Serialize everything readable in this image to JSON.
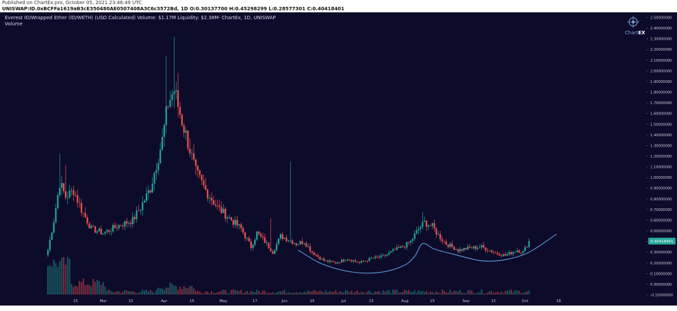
{
  "header": {
    "published": "Published on ChartEx.pro, October 05, 2021 23:46:49 UTC",
    "ticker": "UNISWAP:ID.0xBCFFa1619aB3cE350480AE0507408A3C6c3572Bd, 1D O:0.30137700 H:0.45298299 L:0.28577301 C:0.40418401"
  },
  "legend": {
    "line1": "Everest ID/Wrapped Ether (ID/WETH) (USD Calculated) Volume: $1.17M Liquidity: $2.38M· ChartEx, 1D, UNISWAP",
    "line2": "Volume"
  },
  "logo": {
    "text_chart": "Chart",
    "text_ex": "EX",
    "icon": "crosshair-globe-icon"
  },
  "colors": {
    "background": "#0d0b2a",
    "up": "#26a69a",
    "down": "#ef5350",
    "curve": "#5b9fd6",
    "price_badge": "#26a69a",
    "axis_text": "#c8c8d8"
  },
  "chart_data": {
    "type": "candlestick",
    "title": "Everest ID/Wrapped Ether (ID/WETH) (USD Calculated)",
    "last_price": 0.40418401,
    "last_price_label": "0.40418401",
    "ylim": [
      -0.1,
      2.5
    ],
    "y_ticks": [
      "2.50000000",
      "2.40000000",
      "2.30000000",
      "2.20000000",
      "2.10000000",
      "2.00000000",
      "1.90000000",
      "1.80000000",
      "1.70000000",
      "1.60000000",
      "1.50000000",
      "1.40000000",
      "1.30000000",
      "1.20000000",
      "1.10000000",
      "1.00000000",
      "0.90000000",
      "0.80000000",
      "0.70000000",
      "0.60000000",
      "0.50000000",
      "0.40000000",
      "0.30000000",
      "0.20000000",
      "0.10000000",
      "0.00000000",
      "-0.10000000"
    ],
    "x_ticks": [
      "15",
      "Mar",
      "15",
      "Apr",
      "15",
      "May",
      "17",
      "Jun",
      "15",
      "Jul",
      "15",
      "Aug",
      "15",
      "Sep",
      "15",
      "Oct",
      "18"
    ],
    "x_tick_days": [
      14,
      28,
      42,
      59,
      73,
      89,
      105,
      120,
      134,
      150,
      164,
      181,
      195,
      212,
      226,
      242,
      259
    ],
    "volume_ylim": [
      0,
      0.3
    ],
    "price_keypoints": [
      {
        "day": 0,
        "close": 0.32
      },
      {
        "day": 3,
        "close": 0.6
      },
      {
        "day": 6,
        "close": 0.95
      },
      {
        "day": 9,
        "close": 0.82
      },
      {
        "day": 13,
        "close": 0.88
      },
      {
        "day": 17,
        "close": 0.7
      },
      {
        "day": 22,
        "close": 0.52
      },
      {
        "day": 28,
        "close": 0.48
      },
      {
        "day": 36,
        "close": 0.55
      },
      {
        "day": 43,
        "close": 0.6
      },
      {
        "day": 47,
        "close": 0.72
      },
      {
        "day": 52,
        "close": 0.9
      },
      {
        "day": 58,
        "close": 1.35
      },
      {
        "day": 61,
        "close": 1.7
      },
      {
        "day": 64,
        "close": 1.82
      },
      {
        "day": 67,
        "close": 1.6
      },
      {
        "day": 70,
        "close": 1.4
      },
      {
        "day": 75,
        "close": 1.05
      },
      {
        "day": 80,
        "close": 0.88
      },
      {
        "day": 86,
        "close": 0.72
      },
      {
        "day": 92,
        "close": 0.62
      },
      {
        "day": 98,
        "close": 0.52
      },
      {
        "day": 103,
        "close": 0.35
      },
      {
        "day": 106,
        "close": 0.48
      },
      {
        "day": 110,
        "close": 0.4
      },
      {
        "day": 114,
        "close": 0.3
      },
      {
        "day": 118,
        "close": 0.45
      },
      {
        "day": 122,
        "close": 0.42
      },
      {
        "day": 126,
        "close": 0.38
      },
      {
        "day": 130,
        "close": 0.4
      },
      {
        "day": 134,
        "close": 0.3
      },
      {
        "day": 140,
        "close": 0.22
      },
      {
        "day": 146,
        "close": 0.2
      },
      {
        "day": 152,
        "close": 0.24
      },
      {
        "day": 158,
        "close": 0.2
      },
      {
        "day": 164,
        "close": 0.24
      },
      {
        "day": 170,
        "close": 0.26
      },
      {
        "day": 176,
        "close": 0.32
      },
      {
        "day": 180,
        "close": 0.35
      },
      {
        "day": 184,
        "close": 0.4
      },
      {
        "day": 188,
        "close": 0.52
      },
      {
        "day": 191,
        "close": 0.58
      },
      {
        "day": 195,
        "close": 0.54
      },
      {
        "day": 198,
        "close": 0.46
      },
      {
        "day": 202,
        "close": 0.38
      },
      {
        "day": 208,
        "close": 0.32
      },
      {
        "day": 214,
        "close": 0.34
      },
      {
        "day": 220,
        "close": 0.35
      },
      {
        "day": 226,
        "close": 0.3
      },
      {
        "day": 232,
        "close": 0.27
      },
      {
        "day": 238,
        "close": 0.32
      },
      {
        "day": 241,
        "close": 0.3
      },
      {
        "day": 244,
        "close": 0.404
      }
    ],
    "spikes": [
      {
        "day": 64,
        "high": 2.32
      },
      {
        "day": 60,
        "high": 2.14
      },
      {
        "day": 66,
        "high": 1.98
      },
      {
        "day": 6,
        "high": 1.22
      },
      {
        "day": 123,
        "high": 1.15
      },
      {
        "day": 9,
        "high": 1.12
      },
      {
        "day": 190,
        "high": 0.68
      },
      {
        "day": 113,
        "high": 0.62
      }
    ],
    "curve_points": [
      {
        "day": 127,
        "value": 0.32
      },
      {
        "day": 139,
        "value": 0.19
      },
      {
        "day": 154,
        "value": 0.115
      },
      {
        "day": 168,
        "value": 0.11
      },
      {
        "day": 180,
        "value": 0.17
      },
      {
        "day": 186,
        "value": 0.26
      },
      {
        "day": 190,
        "value": 0.38
      },
      {
        "day": 196,
        "value": 0.33
      },
      {
        "day": 206,
        "value": 0.28
      },
      {
        "day": 220,
        "value": 0.22
      },
      {
        "day": 232,
        "value": 0.23
      },
      {
        "day": 244,
        "value": 0.3
      },
      {
        "day": 258,
        "value": 0.47
      }
    ]
  }
}
